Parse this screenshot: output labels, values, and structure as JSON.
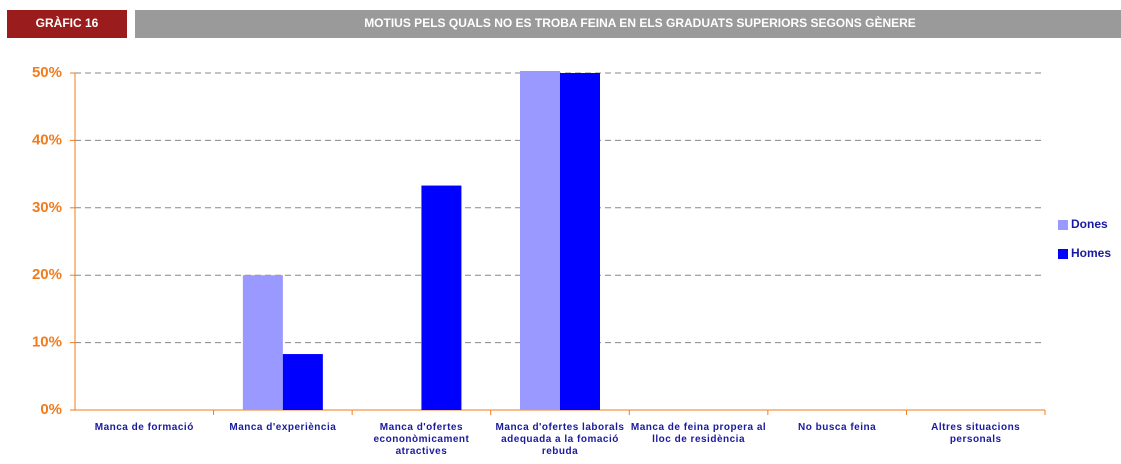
{
  "chart_data": {
    "type": "bar",
    "label": "GRÀFIC 16",
    "title": "MOTIUS PELS QUALS NO ES TROBA FEINA EN ELS GRADUATS SUPERIORS SEGONS GÈNERE",
    "categories": [
      "Manca de formació",
      "Manca d'experiència",
      "Manca d'ofertes econonòmicament atractives",
      "Manca d'ofertes laborals adequada a la fomació rebuda",
      "Manca de feina propera al lloc de residència",
      "No busca feina",
      "Altres situacions personals"
    ],
    "series": [
      {
        "name": "Dones",
        "color": "#9999ff",
        "values": [
          0,
          20,
          0,
          50.3,
          0,
          0,
          0
        ]
      },
      {
        "name": "Homes",
        "color": "#0000ff",
        "values": [
          0,
          8.3,
          33.3,
          50,
          0,
          0,
          0
        ]
      }
    ],
    "ylim": [
      0,
      50
    ],
    "yticks": [
      {
        "value": 0,
        "label": "0%"
      },
      {
        "value": 10,
        "label": "10%"
      },
      {
        "value": 20,
        "label": "20%"
      },
      {
        "value": 30,
        "label": "30%"
      },
      {
        "value": 40,
        "label": "40%"
      },
      {
        "value": 50,
        "label": "50%"
      }
    ],
    "grid": true,
    "legend": "right"
  }
}
